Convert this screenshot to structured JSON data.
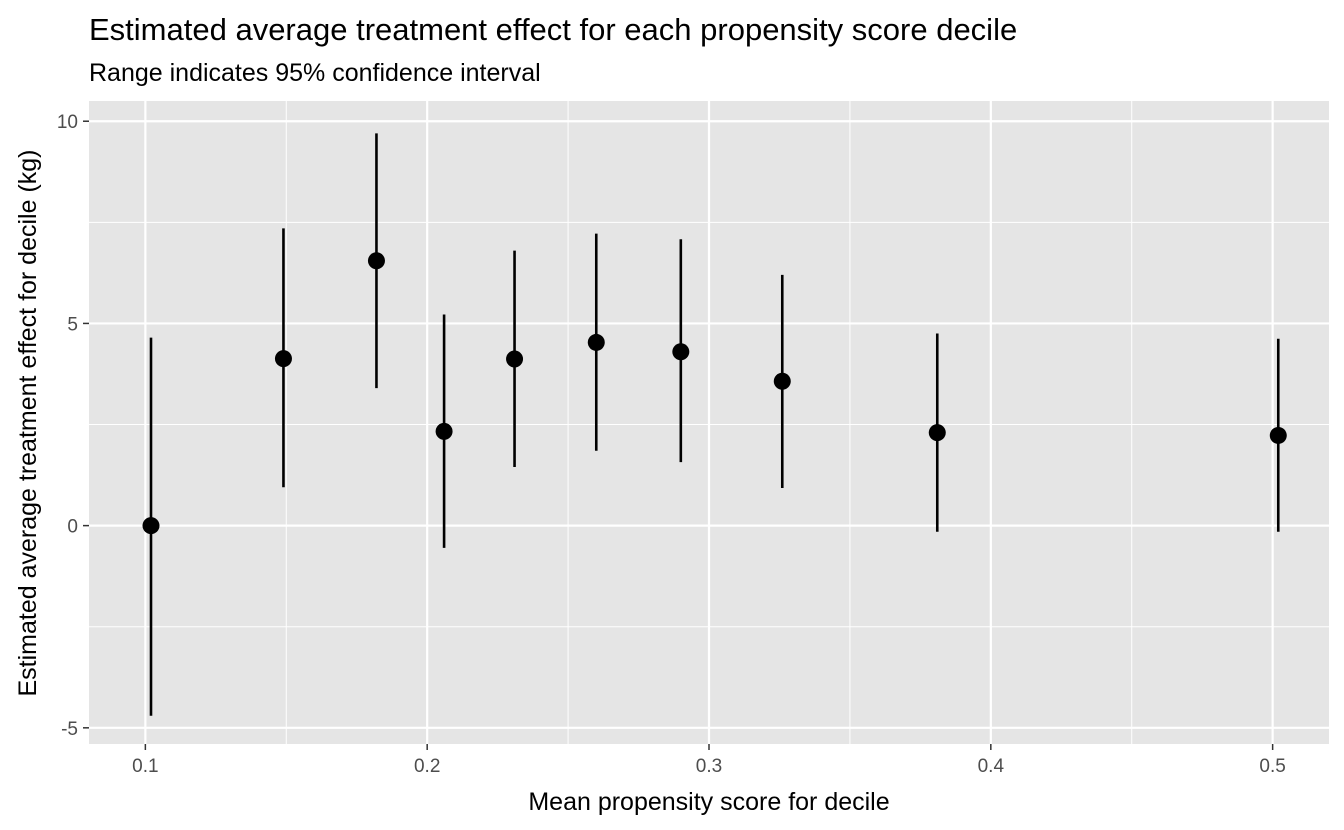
{
  "chart_data": {
    "type": "scatter",
    "title": "Estimated average treatment effect for each propensity score decile",
    "subtitle": "Range indicates 95% confidence interval",
    "xlabel": "Mean propensity score for decile",
    "ylabel": "Estimated average treatment effect for decile (kg)",
    "xlim": [
      0.08,
      0.52
    ],
    "ylim": [
      -5.4,
      10.5
    ],
    "x_ticks": [
      0.1,
      0.2,
      0.3,
      0.4,
      0.5
    ],
    "x_tick_labels": [
      "0.1",
      "0.2",
      "0.3",
      "0.4",
      "0.5"
    ],
    "y_ticks": [
      -5,
      0,
      5,
      10
    ],
    "y_tick_labels": [
      "-5",
      "0",
      "5",
      "10"
    ],
    "grid": true,
    "panel_background": "#e5e5e5",
    "grid_color": "#ffffff",
    "point_color": "#000000",
    "points": [
      {
        "x": 0.102,
        "y": 0.0,
        "lower": -4.7,
        "upper": 4.65
      },
      {
        "x": 0.149,
        "y": 4.13,
        "lower": 0.95,
        "upper": 7.35
      },
      {
        "x": 0.182,
        "y": 6.55,
        "lower": 3.4,
        "upper": 9.7
      },
      {
        "x": 0.206,
        "y": 2.33,
        "lower": -0.55,
        "upper": 5.22
      },
      {
        "x": 0.231,
        "y": 4.12,
        "lower": 1.45,
        "upper": 6.8
      },
      {
        "x": 0.26,
        "y": 4.53,
        "lower": 1.85,
        "upper": 7.22
      },
      {
        "x": 0.29,
        "y": 4.3,
        "lower": 1.57,
        "upper": 7.08
      },
      {
        "x": 0.326,
        "y": 3.57,
        "lower": 0.93,
        "upper": 6.2
      },
      {
        "x": 0.381,
        "y": 2.3,
        "lower": -0.15,
        "upper": 4.75
      },
      {
        "x": 0.502,
        "y": 2.23,
        "lower": -0.15,
        "upper": 4.62
      }
    ]
  }
}
